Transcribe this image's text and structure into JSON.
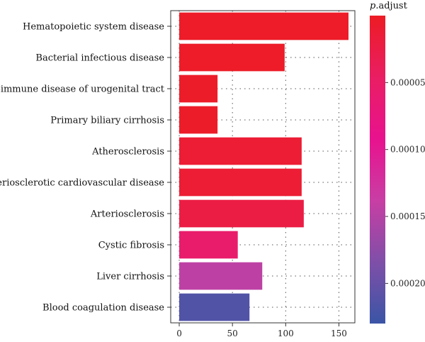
{
  "chart_data": {
    "type": "bar",
    "orientation": "horizontal",
    "categories": [
      "Hematopoietic system disease",
      "Bacterial infectious disease",
      "Autoimmune disease of urogenital tract",
      "Primary biliary cirrhosis",
      "Atherosclerosis",
      "Arteriosclerotic cardiovascular disease",
      "Arteriosclerosis",
      "Cystic fibrosis",
      "Liver cirrhosis",
      "Blood coagulation disease"
    ],
    "values": [
      159,
      99,
      36,
      36,
      115,
      115,
      117,
      55,
      78,
      66
    ],
    "p_adjust": [
      3e-06,
      3e-06,
      4e-06,
      4e-06,
      1.2e-05,
      1.2e-05,
      2.3e-05,
      5.5e-05,
      0.000145,
      0.000215
    ],
    "xlim": [
      -8,
      165
    ],
    "xticks": [
      0,
      50,
      100,
      150
    ],
    "grid": true,
    "grid_style": "dotted",
    "legend": {
      "title_italic": "p",
      "title_rest": ".adjust",
      "range": [
        0.0,
        0.00023
      ],
      "ticks": [
        {
          "value": 5e-05,
          "label": "0.00005"
        },
        {
          "value": 0.0001,
          "label": "0.00010"
        },
        {
          "value": 0.00015,
          "label": "0.00015"
        },
        {
          "value": 0.0002,
          "label": "0.00020"
        }
      ],
      "colors": [
        "#ed1c24",
        "#e91e63",
        "#e8128e",
        "#c83ea4",
        "#7f4fa8",
        "#3a55a6"
      ],
      "placement": "right"
    }
  }
}
